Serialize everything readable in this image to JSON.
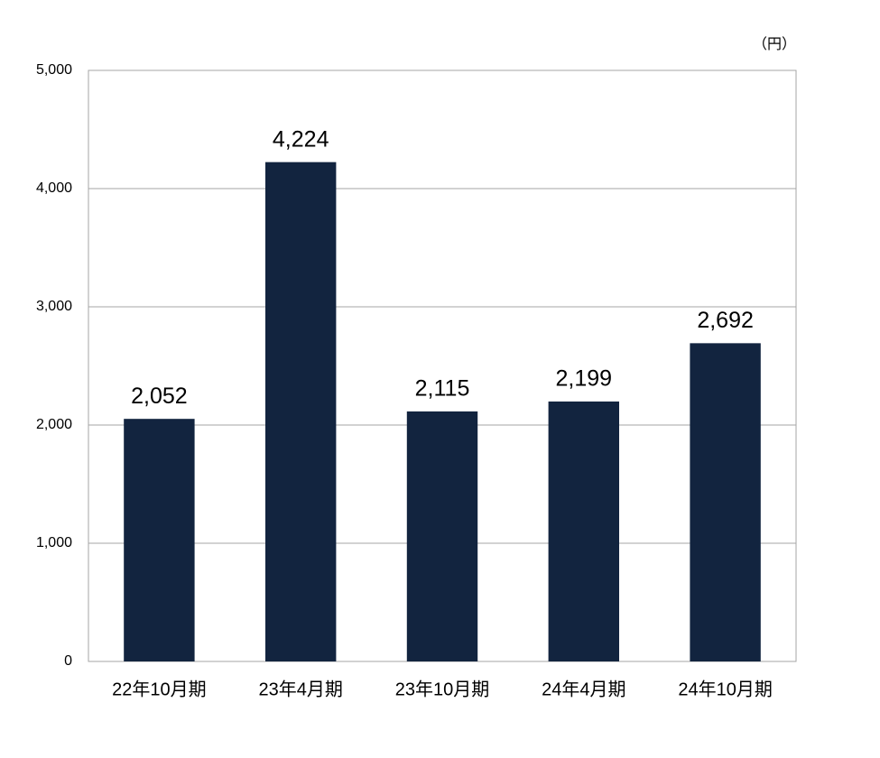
{
  "chart_data": {
    "type": "bar",
    "unit_label": "（円）",
    "categories": [
      "22年10月期",
      "23年4月期",
      "23年10月期",
      "24年4月期",
      "24年10月期"
    ],
    "values": [
      2052,
      4224,
      2115,
      2199,
      2692
    ],
    "value_labels": [
      "2,052",
      "4,224",
      "2,115",
      "2,199",
      "2,692"
    ],
    "color": "#12243f",
    "ylim": [
      0,
      5000
    ],
    "yticks": [
      0,
      {
        "value": 1000,
        "label": "1,000"
      },
      {
        "value": 2000,
        "label": "2,000"
      },
      {
        "value": 3000,
        "label": "3,000"
      },
      {
        "value": 4000,
        "label": "4,000"
      },
      {
        "value": 5000,
        "label": "5,000"
      }
    ],
    "grid": true
  }
}
